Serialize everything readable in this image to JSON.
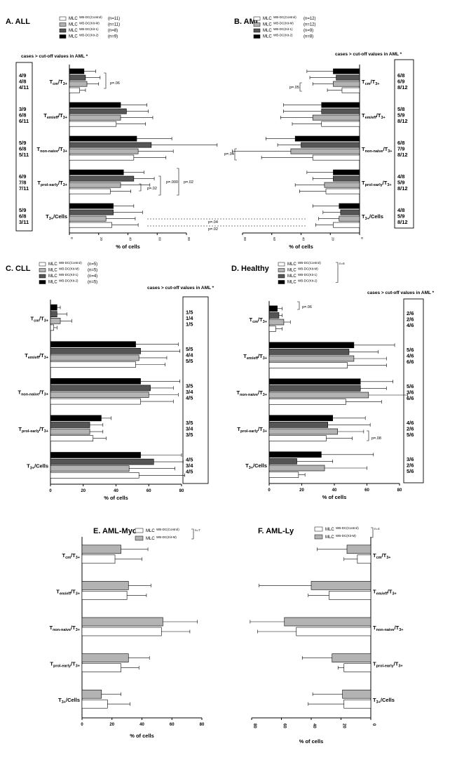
{
  "colors": {
    "control": "#ffffff",
    "kitm": "#b3b3b3",
    "kit1": "#555555",
    "kit2": "#000000",
    "stroke": "#000000"
  },
  "common": {
    "xlabel": "% of cells",
    "cutoff_header": "cases  > cut-off values in AML *",
    "cats": [
      "cm",
      "emeff",
      "nonnaive",
      "prolearly",
      "cells"
    ],
    "cat_labels": {
      "cm": {
        "main": "T",
        "sub": "cm",
        "rest": "/T",
        "sub2": "3+"
      },
      "emeff": {
        "main": "T",
        "sub": "em/eff",
        "rest": "/T",
        "sub2": "3+"
      },
      "nonnaive": {
        "main": "T",
        "sub": "non-naive",
        "rest": "/T",
        "sub2": "3+"
      },
      "prolearly": {
        "main": "T",
        "sub": "prol-early",
        "rest": "/T",
        "sub2": "3+"
      },
      "cells": {
        "main": "T",
        "sub": "3+",
        "rest": "/Cells",
        "sub2": ""
      }
    }
  },
  "chart_data": [
    {
      "id": "A",
      "panel_title": "A. ALL",
      "type": "bar",
      "orientation": "horizontal",
      "xlim": [
        0,
        80
      ],
      "ticks": [
        "0",
        "20",
        "40",
        "60",
        "80"
      ],
      "series": [
        {
          "key": "control",
          "legend": {
            "pre": "MLC",
            "sup": "WB-DC(Control)",
            "n": "(n=11)"
          },
          "values": [
            7,
            32,
            44,
            28,
            29
          ],
          "errors": [
            4,
            20,
            22,
            14,
            18
          ]
        },
        {
          "key": "kitm",
          "legend": {
            "pre": "MLC",
            "sup": "WB-DC(Kit-M)",
            "n": "(n=11)"
          },
          "values": [
            12,
            35,
            47,
            35,
            25
          ],
          "errors": [
            8,
            22,
            24,
            20,
            20
          ]
        },
        {
          "key": "kit1",
          "legend": {
            "pre": "MLC",
            "sup": "WB-DC(Kit-1)",
            "n": "(n=8)"
          },
          "values": [
            11,
            39,
            56,
            44,
            30
          ],
          "errors": [
            10,
            15,
            45,
            14,
            20
          ]
        },
        {
          "key": "kit2",
          "legend": {
            "pre": "MLC",
            "sup": "WB-DC(Kit-2)",
            "n": "(n=9)"
          },
          "values": [
            10,
            35,
            46,
            37,
            30
          ],
          "errors": [
            8,
            18,
            24,
            14,
            14
          ]
        }
      ],
      "cutoff_cases": [
        [
          "4/9",
          "4/8",
          "4/11"
        ],
        [
          "3/9",
          "6/8",
          "6/11"
        ],
        [
          "5/9",
          "6/8",
          "5/11"
        ],
        [
          "6/9",
          "7/8",
          "7/11"
        ],
        [
          "5/9",
          "6/8",
          "3/11"
        ]
      ],
      "p_values": [
        "p=.06",
        "p=.02",
        "p=.000",
        "p=.02"
      ],
      "cross_p": [
        "p=.04",
        "p=.02"
      ]
    },
    {
      "id": "B",
      "panel_title": "B. AML",
      "type": "bar",
      "orientation": "horizontal-reversed",
      "xlim": [
        0,
        80
      ],
      "ticks": [
        "80",
        "60",
        "40",
        "20",
        "0"
      ],
      "series": [
        {
          "key": "control",
          "legend": {
            "pre": "MLC",
            "sup": "WB-DC(Control)",
            "n": "(n=12)"
          },
          "values": [
            12,
            26,
            32,
            23,
            18
          ],
          "errors": [
            10,
            20,
            35,
            18,
            12
          ]
        },
        {
          "key": "kitm",
          "legend": {
            "pre": "MLC",
            "sup": "WB-DC(Kit-M)",
            "n": "(n=12)"
          },
          "values": [
            18,
            32,
            47,
            24,
            14
          ],
          "errors": [
            14,
            22,
            40,
            20,
            14
          ]
        },
        {
          "key": "kit1",
          "legend": {
            "pre": "MLC",
            "sup": "WB-DC(Kit-1)",
            "n": "(n=9)"
          },
          "values": [
            16,
            26,
            40,
            18,
            13
          ],
          "errors": [
            18,
            26,
            16,
            14,
            12
          ]
        },
        {
          "key": "kit2",
          "legend": {
            "pre": "MLC",
            "sup": "WB-DC(Kit-2)",
            "n": "(n=8)"
          },
          "values": [
            18,
            26,
            44,
            18,
            14
          ],
          "errors": [
            18,
            26,
            20,
            18,
            18
          ]
        }
      ],
      "cutoff_cases": [
        [
          "6/8",
          "6/9",
          "8/12"
        ],
        [
          "5/8",
          "5/9",
          "8/12"
        ],
        [
          "6/8",
          "7/9",
          "8/12"
        ],
        [
          "4/8",
          "5/9",
          "8/12"
        ],
        [
          "4/8",
          "5/9",
          "8/12"
        ]
      ],
      "p_values": [
        "p=.05",
        "p=.04"
      ]
    },
    {
      "id": "C",
      "panel_title": "C. CLL",
      "type": "bar",
      "orientation": "horizontal",
      "xlim": [
        0,
        80
      ],
      "ticks": [
        "0",
        "20",
        "40",
        "60",
        "80"
      ],
      "legend_bracket": "",
      "series": [
        {
          "key": "control",
          "legend": {
            "pre": "MLC",
            "sup": "WB-DC(Control)",
            "n": "(n=5)"
          },
          "values": [
            2,
            52,
            55,
            26,
            54
          ],
          "errors": [
            2,
            18,
            20,
            8,
            28
          ]
        },
        {
          "key": "kitm",
          "legend": {
            "pre": "MLC",
            "sup": "WB-DC(Kit-M)",
            "n": "(n=5)"
          },
          "values": [
            6,
            54,
            60,
            24,
            48
          ],
          "errors": [
            7,
            17,
            18,
            8,
            28
          ]
        },
        {
          "key": "kit1",
          "legend": {
            "pre": "MLC",
            "sup": "WB-DC(Kit-1)",
            "n": "(n=4)"
          },
          "values": [
            4,
            55,
            61,
            24,
            63
          ],
          "errors": [
            6,
            24,
            14,
            8,
            18
          ]
        },
        {
          "key": "kit2",
          "legend": {
            "pre": "MLC",
            "sup": "WB-DC(Kit-2)",
            "n": "(n=5)"
          },
          "values": [
            4,
            52,
            55,
            31,
            55
          ],
          "errors": [
            2,
            26,
            24,
            6,
            25
          ]
        }
      ],
      "cutoff_cases": [
        [
          "1/5",
          "1/4",
          "1/5"
        ],
        [
          "5/5",
          "4/4",
          "5/5"
        ],
        [
          "3/5",
          "3/4",
          "4/5"
        ],
        [
          "3/5",
          "3/4",
          "3/5"
        ],
        [
          "4/5",
          "3/4",
          "4/5"
        ]
      ]
    },
    {
      "id": "D",
      "panel_title": "D. Healthy",
      "type": "bar",
      "orientation": "horizontal",
      "xlim": [
        0,
        80
      ],
      "ticks": [
        "0",
        "20",
        "40",
        "60",
        "80"
      ],
      "legend_bracket": "n=6",
      "series": [
        {
          "key": "control",
          "legend": {
            "pre": "MLC",
            "sup": "WB-DC(Control)",
            "n": ""
          },
          "values": [
            4,
            48,
            47,
            35,
            18
          ],
          "errors": [
            4,
            24,
            22,
            16,
            4
          ]
        },
        {
          "key": "kitm",
          "legend": {
            "pre": "MLC",
            "sup": "WB-DC(Kit-M)",
            "n": ""
          },
          "values": [
            9,
            52,
            61,
            42,
            34
          ],
          "errors": [
            4,
            20,
            24,
            16,
            26
          ]
        },
        {
          "key": "kit1",
          "legend": {
            "pre": "MLC",
            "sup": "WB-DC(Kit-1)",
            "n": ""
          },
          "values": [
            6,
            49,
            56,
            36,
            17
          ],
          "errors": [
            2,
            18,
            16,
            26,
            22
          ]
        },
        {
          "key": "kit2",
          "legend": {
            "pre": "MLC",
            "sup": "WB-DC(Kit-2)",
            "n": ""
          },
          "values": [
            5,
            52,
            56,
            39,
            32
          ],
          "errors": [
            3,
            25,
            20,
            20,
            32
          ]
        }
      ],
      "cutoff_cases": [
        [
          "2/6",
          "2/6",
          "4/6"
        ],
        [
          "5/6",
          "4/6",
          "6/6"
        ],
        [
          "5/6",
          "3/6",
          "6/6"
        ],
        [
          "4/6",
          "2/6",
          "5/6"
        ],
        [
          "3/6",
          "2/6",
          "5/6"
        ]
      ],
      "p_values": [
        "p=.06",
        "p=.08"
      ]
    },
    {
      "id": "E",
      "panel_title": "E. AML-Myo",
      "type": "bar",
      "orientation": "horizontal",
      "xlim": [
        0,
        80
      ],
      "ticks": [
        "0",
        "20",
        "40",
        "60",
        "80"
      ],
      "legend_bracket": "n=7",
      "series": [
        {
          "key": "control",
          "legend": {
            "pre": "MLC",
            "sup": "WB-DC(Control)",
            "n": ""
          },
          "values": [
            22,
            30,
            53,
            26,
            17
          ],
          "errors": [
            18,
            13,
            19,
            12,
            15
          ]
        },
        {
          "key": "kitm",
          "legend": {
            "pre": "MLC",
            "sup": "WB-DC(Kit-M)",
            "n": ""
          },
          "values": [
            26,
            31,
            54,
            31,
            13
          ],
          "errors": [
            18,
            15,
            23,
            14,
            13
          ]
        }
      ]
    },
    {
      "id": "F",
      "panel_title": "F. AML-Ly",
      "type": "bar",
      "orientation": "horizontal-reversed",
      "xlim": [
        0,
        80
      ],
      "ticks": [
        "80",
        "60",
        "40",
        "20",
        "0"
      ],
      "legend_bracket": "n=4",
      "series": [
        {
          "key": "control",
          "legend": {
            "pre": "MLC",
            "sup": "WB-DC(Control)",
            "n": ""
          },
          "values": [
            9,
            28,
            50,
            18,
            18
          ],
          "errors": [
            9,
            14,
            26,
            4,
            24
          ]
        },
        {
          "key": "kitm",
          "legend": {
            "pre": "MLC",
            "sup": "WB-DC(Kit-M)",
            "n": ""
          },
          "values": [
            16,
            40,
            58,
            26,
            19
          ],
          "errors": [
            20,
            35,
            23,
            20,
            20
          ]
        }
      ]
    }
  ]
}
